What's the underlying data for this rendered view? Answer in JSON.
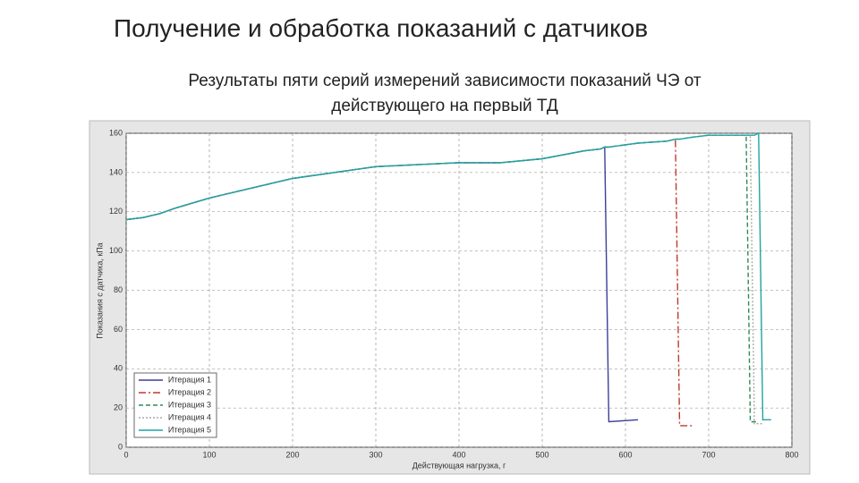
{
  "chart_data": {
    "type": "line",
    "title": "Получение и обработка показаний с датчиков",
    "subtitle": [
      "Результаты пяти серий измерений зависимости показаний ЧЭ от",
      "действующего на первый ТД"
    ],
    "x_label": "Действующая нагрузка, г",
    "y_label": "Показания с датчика, кПа",
    "x": [
      0,
      20,
      40,
      60,
      100,
      150,
      200,
      250,
      300,
      350,
      400,
      450,
      500,
      550,
      570,
      575,
      580,
      615,
      650,
      660,
      665,
      680,
      700,
      745,
      750,
      755,
      760,
      765,
      775
    ],
    "series": [
      {
        "name": "Итерация 1",
        "color": "#3a3f9a",
        "dash": "none",
        "values": [
          116,
          117,
          119,
          122,
          127,
          132,
          137,
          140,
          143,
          144,
          145,
          145,
          147,
          151,
          152,
          153,
          13,
          14,
          null,
          null,
          null,
          null,
          null,
          null,
          null,
          null,
          null,
          null,
          null
        ]
      },
      {
        "name": "Итерация 2",
        "color": "#c0392b",
        "dash": "8 3 2 3",
        "values": [
          116,
          117,
          119,
          122,
          127,
          132,
          137,
          140,
          143,
          144,
          145,
          145,
          147,
          151,
          152,
          153,
          153,
          155,
          156,
          157,
          11,
          11,
          null,
          null,
          null,
          null,
          null,
          null,
          null
        ]
      },
      {
        "name": "Итерация 3",
        "color": "#2e8b57",
        "dash": "5 3",
        "values": [
          116,
          117,
          119,
          122,
          127,
          132,
          137,
          140,
          143,
          144,
          145,
          145,
          147,
          151,
          152,
          153,
          153,
          155,
          156,
          157,
          157,
          158,
          159,
          159,
          13,
          13,
          13,
          null,
          null
        ]
      },
      {
        "name": "Итерация 4",
        "color": "#a8a8a8",
        "dash": "2 2",
        "values": [
          116,
          117,
          119,
          122,
          127,
          132,
          137,
          140,
          143,
          144,
          145,
          145,
          147,
          151,
          152,
          153,
          153,
          155,
          156,
          157,
          157,
          158,
          159,
          159,
          159,
          12,
          12,
          12,
          null
        ]
      },
      {
        "name": "Итерация 5",
        "color": "#1fa3a3",
        "dash": "none",
        "values": [
          116,
          117,
          119,
          122,
          127,
          132,
          137,
          140,
          143,
          144,
          145,
          145,
          147,
          151,
          152,
          153,
          153,
          155,
          156,
          157,
          157,
          158,
          159,
          159,
          159,
          159,
          160,
          14,
          14
        ]
      }
    ],
    "xlim": [
      0,
      800
    ],
    "xticks": [
      0,
      100,
      200,
      300,
      400,
      500,
      600,
      700,
      800
    ],
    "ylim": [
      0,
      160
    ],
    "yticks": [
      0,
      20,
      40,
      60,
      80,
      100,
      120,
      140,
      160
    ],
    "grid": true,
    "legend": "lower left"
  }
}
